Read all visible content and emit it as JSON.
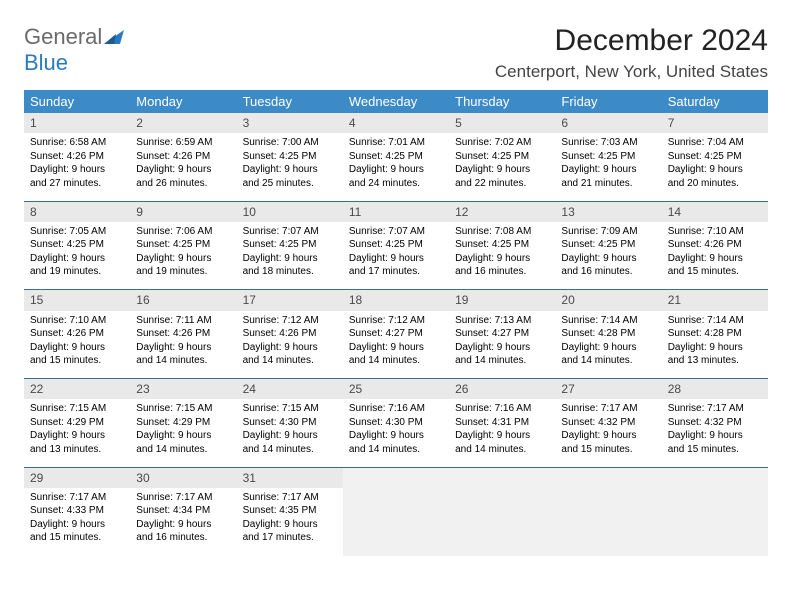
{
  "logo": {
    "word1": "General",
    "word2": "Blue",
    "wing_color": "#2a7abf",
    "gray_color": "#6b6b6b"
  },
  "title": "December 2024",
  "subtitle": "Centerport, New York, United States",
  "header_bg": "#3d8bc6",
  "daynum_bg": "#e9e9e9",
  "empty_bg": "#f1f1f1",
  "border_color": "#3d6b99",
  "weekdays": [
    "Sunday",
    "Monday",
    "Tuesday",
    "Wednesday",
    "Thursday",
    "Friday",
    "Saturday"
  ],
  "cols": 7,
  "weeks": [
    [
      {
        "n": "1",
        "sr": "Sunrise: 6:58 AM",
        "ss": "Sunset: 4:26 PM",
        "d1": "Daylight: 9 hours",
        "d2": "and 27 minutes."
      },
      {
        "n": "2",
        "sr": "Sunrise: 6:59 AM",
        "ss": "Sunset: 4:26 PM",
        "d1": "Daylight: 9 hours",
        "d2": "and 26 minutes."
      },
      {
        "n": "3",
        "sr": "Sunrise: 7:00 AM",
        "ss": "Sunset: 4:25 PM",
        "d1": "Daylight: 9 hours",
        "d2": "and 25 minutes."
      },
      {
        "n": "4",
        "sr": "Sunrise: 7:01 AM",
        "ss": "Sunset: 4:25 PM",
        "d1": "Daylight: 9 hours",
        "d2": "and 24 minutes."
      },
      {
        "n": "5",
        "sr": "Sunrise: 7:02 AM",
        "ss": "Sunset: 4:25 PM",
        "d1": "Daylight: 9 hours",
        "d2": "and 22 minutes."
      },
      {
        "n": "6",
        "sr": "Sunrise: 7:03 AM",
        "ss": "Sunset: 4:25 PM",
        "d1": "Daylight: 9 hours",
        "d2": "and 21 minutes."
      },
      {
        "n": "7",
        "sr": "Sunrise: 7:04 AM",
        "ss": "Sunset: 4:25 PM",
        "d1": "Daylight: 9 hours",
        "d2": "and 20 minutes."
      }
    ],
    [
      {
        "n": "8",
        "sr": "Sunrise: 7:05 AM",
        "ss": "Sunset: 4:25 PM",
        "d1": "Daylight: 9 hours",
        "d2": "and 19 minutes."
      },
      {
        "n": "9",
        "sr": "Sunrise: 7:06 AM",
        "ss": "Sunset: 4:25 PM",
        "d1": "Daylight: 9 hours",
        "d2": "and 19 minutes."
      },
      {
        "n": "10",
        "sr": "Sunrise: 7:07 AM",
        "ss": "Sunset: 4:25 PM",
        "d1": "Daylight: 9 hours",
        "d2": "and 18 minutes."
      },
      {
        "n": "11",
        "sr": "Sunrise: 7:07 AM",
        "ss": "Sunset: 4:25 PM",
        "d1": "Daylight: 9 hours",
        "d2": "and 17 minutes."
      },
      {
        "n": "12",
        "sr": "Sunrise: 7:08 AM",
        "ss": "Sunset: 4:25 PM",
        "d1": "Daylight: 9 hours",
        "d2": "and 16 minutes."
      },
      {
        "n": "13",
        "sr": "Sunrise: 7:09 AM",
        "ss": "Sunset: 4:25 PM",
        "d1": "Daylight: 9 hours",
        "d2": "and 16 minutes."
      },
      {
        "n": "14",
        "sr": "Sunrise: 7:10 AM",
        "ss": "Sunset: 4:26 PM",
        "d1": "Daylight: 9 hours",
        "d2": "and 15 minutes."
      }
    ],
    [
      {
        "n": "15",
        "sr": "Sunrise: 7:10 AM",
        "ss": "Sunset: 4:26 PM",
        "d1": "Daylight: 9 hours",
        "d2": "and 15 minutes."
      },
      {
        "n": "16",
        "sr": "Sunrise: 7:11 AM",
        "ss": "Sunset: 4:26 PM",
        "d1": "Daylight: 9 hours",
        "d2": "and 14 minutes."
      },
      {
        "n": "17",
        "sr": "Sunrise: 7:12 AM",
        "ss": "Sunset: 4:26 PM",
        "d1": "Daylight: 9 hours",
        "d2": "and 14 minutes."
      },
      {
        "n": "18",
        "sr": "Sunrise: 7:12 AM",
        "ss": "Sunset: 4:27 PM",
        "d1": "Daylight: 9 hours",
        "d2": "and 14 minutes."
      },
      {
        "n": "19",
        "sr": "Sunrise: 7:13 AM",
        "ss": "Sunset: 4:27 PM",
        "d1": "Daylight: 9 hours",
        "d2": "and 14 minutes."
      },
      {
        "n": "20",
        "sr": "Sunrise: 7:14 AM",
        "ss": "Sunset: 4:28 PM",
        "d1": "Daylight: 9 hours",
        "d2": "and 14 minutes."
      },
      {
        "n": "21",
        "sr": "Sunrise: 7:14 AM",
        "ss": "Sunset: 4:28 PM",
        "d1": "Daylight: 9 hours",
        "d2": "and 13 minutes."
      }
    ],
    [
      {
        "n": "22",
        "sr": "Sunrise: 7:15 AM",
        "ss": "Sunset: 4:29 PM",
        "d1": "Daylight: 9 hours",
        "d2": "and 13 minutes."
      },
      {
        "n": "23",
        "sr": "Sunrise: 7:15 AM",
        "ss": "Sunset: 4:29 PM",
        "d1": "Daylight: 9 hours",
        "d2": "and 14 minutes."
      },
      {
        "n": "24",
        "sr": "Sunrise: 7:15 AM",
        "ss": "Sunset: 4:30 PM",
        "d1": "Daylight: 9 hours",
        "d2": "and 14 minutes."
      },
      {
        "n": "25",
        "sr": "Sunrise: 7:16 AM",
        "ss": "Sunset: 4:30 PM",
        "d1": "Daylight: 9 hours",
        "d2": "and 14 minutes."
      },
      {
        "n": "26",
        "sr": "Sunrise: 7:16 AM",
        "ss": "Sunset: 4:31 PM",
        "d1": "Daylight: 9 hours",
        "d2": "and 14 minutes."
      },
      {
        "n": "27",
        "sr": "Sunrise: 7:17 AM",
        "ss": "Sunset: 4:32 PM",
        "d1": "Daylight: 9 hours",
        "d2": "and 15 minutes."
      },
      {
        "n": "28",
        "sr": "Sunrise: 7:17 AM",
        "ss": "Sunset: 4:32 PM",
        "d1": "Daylight: 9 hours",
        "d2": "and 15 minutes."
      }
    ],
    [
      {
        "n": "29",
        "sr": "Sunrise: 7:17 AM",
        "ss": "Sunset: 4:33 PM",
        "d1": "Daylight: 9 hours",
        "d2": "and 15 minutes."
      },
      {
        "n": "30",
        "sr": "Sunrise: 7:17 AM",
        "ss": "Sunset: 4:34 PM",
        "d1": "Daylight: 9 hours",
        "d2": "and 16 minutes."
      },
      {
        "n": "31",
        "sr": "Sunrise: 7:17 AM",
        "ss": "Sunset: 4:35 PM",
        "d1": "Daylight: 9 hours",
        "d2": "and 17 minutes."
      },
      null,
      null,
      null,
      null
    ]
  ]
}
